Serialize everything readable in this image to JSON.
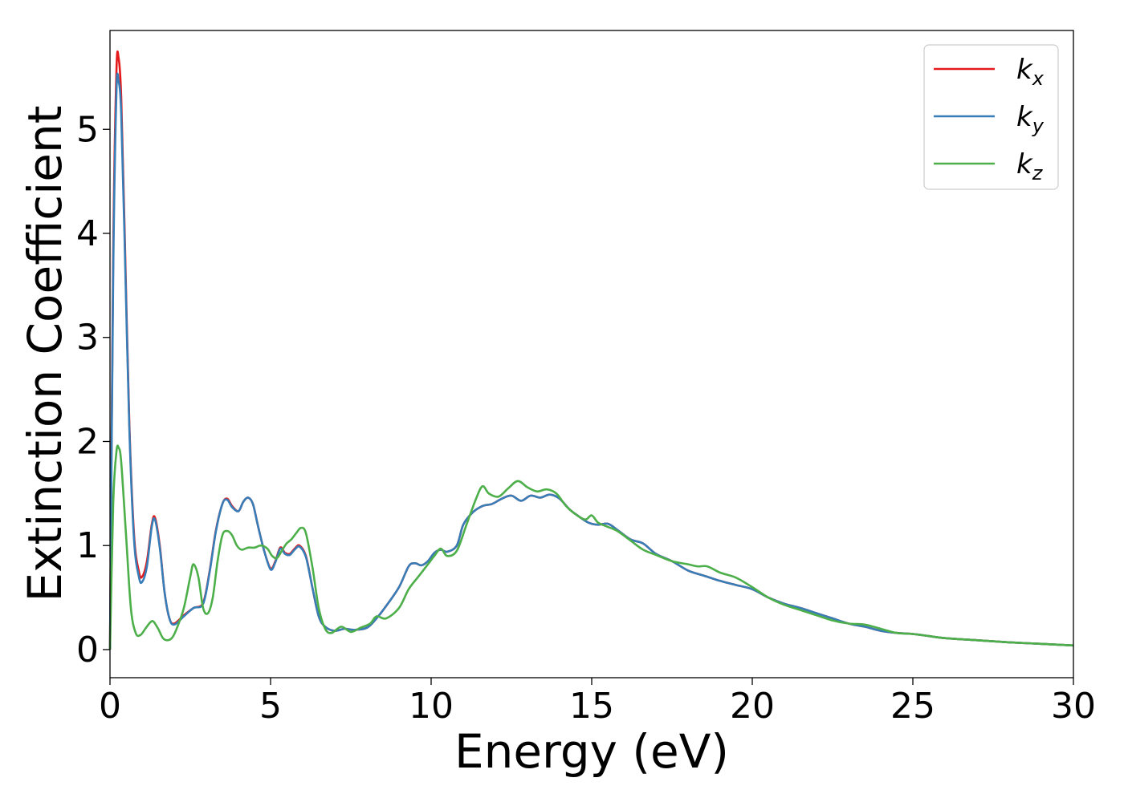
{
  "chart_data": {
    "type": "line",
    "xlabel": "Energy (eV)",
    "ylabel": "Extinction Coefficient",
    "xlim": [
      0,
      30
    ],
    "ylim": [
      -0.27,
      5.95
    ],
    "xticks": [
      "0",
      "5",
      "10",
      "15",
      "20",
      "25",
      "30"
    ],
    "yticks": [
      "0",
      "1",
      "2",
      "3",
      "4",
      "5"
    ],
    "grid": false,
    "legend_position": "top-right",
    "series": [
      {
        "name": "k_x",
        "label_main": "k",
        "label_sub": "x",
        "color": "#e41a1c",
        "x": [
          0.0,
          0.1,
          0.2,
          0.27,
          0.35,
          0.45,
          0.6,
          0.75,
          0.9,
          1.0,
          1.15,
          1.3,
          1.4,
          1.55,
          1.7,
          1.85,
          2.0,
          2.3,
          2.6,
          2.9,
          3.1,
          3.3,
          3.5,
          3.65,
          3.8,
          4.0,
          4.15,
          4.3,
          4.45,
          4.6,
          4.8,
          5.0,
          5.15,
          5.3,
          5.45,
          5.6,
          5.75,
          5.9,
          6.1,
          6.3,
          6.5,
          6.7,
          7.0,
          7.3,
          7.6,
          8.0,
          8.3,
          8.6,
          9.0,
          9.3,
          9.5,
          9.7,
          9.9,
          10.1,
          10.3,
          10.5,
          10.8,
          11.0,
          11.3,
          11.6,
          11.9,
          12.2,
          12.5,
          12.8,
          13.1,
          13.4,
          13.7,
          14.0,
          14.3,
          14.6,
          14.9,
          15.2,
          15.5,
          15.8,
          16.2,
          16.6,
          17.0,
          17.5,
          18.0,
          18.5,
          19.0,
          19.5,
          20.0,
          20.5,
          21.0,
          21.5,
          22.0,
          22.5,
          23.0,
          23.5,
          24.0,
          24.5,
          25.0,
          25.5,
          26.0,
          27.0,
          28.0,
          29.0,
          30.0
        ],
        "y": [
          0.0,
          3.8,
          5.55,
          5.68,
          5.3,
          4.1,
          2.2,
          1.1,
          0.75,
          0.7,
          0.85,
          1.2,
          1.27,
          1.0,
          0.55,
          0.3,
          0.25,
          0.33,
          0.4,
          0.45,
          0.75,
          1.15,
          1.4,
          1.45,
          1.38,
          1.33,
          1.42,
          1.46,
          1.4,
          1.2,
          0.95,
          0.78,
          0.85,
          0.98,
          0.93,
          0.92,
          0.97,
          1.0,
          0.9,
          0.6,
          0.32,
          0.22,
          0.18,
          0.2,
          0.19,
          0.21,
          0.3,
          0.42,
          0.6,
          0.8,
          0.83,
          0.81,
          0.85,
          0.93,
          0.96,
          0.94,
          1.0,
          1.2,
          1.32,
          1.38,
          1.4,
          1.45,
          1.48,
          1.43,
          1.48,
          1.46,
          1.49,
          1.45,
          1.35,
          1.28,
          1.22,
          1.2,
          1.21,
          1.15,
          1.06,
          1.02,
          0.92,
          0.85,
          0.76,
          0.71,
          0.66,
          0.62,
          0.58,
          0.5,
          0.44,
          0.4,
          0.35,
          0.3,
          0.25,
          0.22,
          0.18,
          0.16,
          0.15,
          0.13,
          0.11,
          0.09,
          0.07,
          0.055,
          0.04
        ]
      },
      {
        "name": "k_y",
        "label_main": "k",
        "label_sub": "y",
        "color": "#377eb8",
        "x": [
          0.0,
          0.1,
          0.2,
          0.27,
          0.35,
          0.45,
          0.6,
          0.75,
          0.9,
          1.0,
          1.15,
          1.3,
          1.4,
          1.55,
          1.7,
          1.85,
          2.0,
          2.3,
          2.6,
          2.9,
          3.1,
          3.3,
          3.5,
          3.65,
          3.8,
          4.0,
          4.15,
          4.3,
          4.45,
          4.6,
          4.8,
          5.0,
          5.15,
          5.3,
          5.45,
          5.6,
          5.75,
          5.9,
          6.1,
          6.3,
          6.5,
          6.7,
          7.0,
          7.3,
          7.6,
          8.0,
          8.3,
          8.6,
          9.0,
          9.3,
          9.5,
          9.7,
          9.9,
          10.1,
          10.3,
          10.5,
          10.8,
          11.0,
          11.3,
          11.6,
          11.9,
          12.2,
          12.5,
          12.8,
          13.1,
          13.4,
          13.7,
          14.0,
          14.3,
          14.6,
          14.9,
          15.2,
          15.5,
          15.8,
          16.2,
          16.6,
          17.0,
          17.5,
          18.0,
          18.5,
          19.0,
          19.5,
          20.0,
          20.5,
          21.0,
          21.5,
          22.0,
          22.5,
          23.0,
          23.5,
          24.0,
          24.5,
          25.0,
          25.5,
          26.0,
          27.0,
          28.0,
          29.0,
          30.0
        ],
        "y": [
          0.0,
          3.6,
          5.35,
          5.46,
          5.15,
          4.0,
          2.15,
          1.05,
          0.7,
          0.65,
          0.8,
          1.18,
          1.25,
          0.98,
          0.55,
          0.3,
          0.24,
          0.32,
          0.4,
          0.44,
          0.74,
          1.14,
          1.4,
          1.44,
          1.37,
          1.33,
          1.42,
          1.46,
          1.4,
          1.2,
          0.95,
          0.77,
          0.84,
          0.97,
          0.92,
          0.91,
          0.96,
          0.99,
          0.89,
          0.6,
          0.32,
          0.22,
          0.18,
          0.2,
          0.19,
          0.21,
          0.3,
          0.42,
          0.6,
          0.8,
          0.83,
          0.81,
          0.85,
          0.93,
          0.96,
          0.94,
          1.0,
          1.2,
          1.32,
          1.38,
          1.4,
          1.45,
          1.48,
          1.43,
          1.48,
          1.46,
          1.49,
          1.45,
          1.35,
          1.28,
          1.22,
          1.2,
          1.21,
          1.15,
          1.06,
          1.02,
          0.92,
          0.85,
          0.76,
          0.71,
          0.66,
          0.62,
          0.58,
          0.5,
          0.44,
          0.4,
          0.35,
          0.3,
          0.25,
          0.22,
          0.18,
          0.16,
          0.15,
          0.13,
          0.11,
          0.09,
          0.07,
          0.055,
          0.04
        ]
      },
      {
        "name": "k_z",
        "label_main": "k",
        "label_sub": "z",
        "color": "#4daf4a",
        "x": [
          0.0,
          0.1,
          0.2,
          0.27,
          0.35,
          0.5,
          0.65,
          0.8,
          0.95,
          1.1,
          1.25,
          1.35,
          1.5,
          1.65,
          1.8,
          1.95,
          2.1,
          2.3,
          2.5,
          2.6,
          2.75,
          2.9,
          3.05,
          3.2,
          3.35,
          3.5,
          3.65,
          3.8,
          3.95,
          4.1,
          4.3,
          4.5,
          4.7,
          4.9,
          5.05,
          5.2,
          5.35,
          5.5,
          5.65,
          5.8,
          5.95,
          6.1,
          6.3,
          6.5,
          6.7,
          6.9,
          7.2,
          7.5,
          7.8,
          8.1,
          8.3,
          8.6,
          9.0,
          9.3,
          9.6,
          9.9,
          10.1,
          10.3,
          10.5,
          10.8,
          11.1,
          11.4,
          11.6,
          11.8,
          12.1,
          12.4,
          12.7,
          13.0,
          13.3,
          13.6,
          13.9,
          14.2,
          14.5,
          14.8,
          15.0,
          15.2,
          15.5,
          15.8,
          16.2,
          16.6,
          17.0,
          17.5,
          18.0,
          18.3,
          18.6,
          19.0,
          19.5,
          20.0,
          20.5,
          21.0,
          21.5,
          22.0,
          22.5,
          23.0,
          23.5,
          24.0,
          24.5,
          25.0,
          25.5,
          26.0,
          27.0,
          28.0,
          29.0,
          30.0
        ],
        "y": [
          0.0,
          1.4,
          1.9,
          1.94,
          1.8,
          1.1,
          0.4,
          0.16,
          0.14,
          0.2,
          0.26,
          0.27,
          0.2,
          0.11,
          0.09,
          0.12,
          0.22,
          0.4,
          0.7,
          0.82,
          0.7,
          0.4,
          0.35,
          0.5,
          0.85,
          1.1,
          1.14,
          1.1,
          1.0,
          0.96,
          0.98,
          0.98,
          1.0,
          0.97,
          0.9,
          0.88,
          0.95,
          1.02,
          1.06,
          1.12,
          1.17,
          1.12,
          0.8,
          0.4,
          0.2,
          0.16,
          0.22,
          0.17,
          0.21,
          0.25,
          0.32,
          0.3,
          0.4,
          0.58,
          0.7,
          0.82,
          0.9,
          0.97,
          0.9,
          0.95,
          1.2,
          1.45,
          1.57,
          1.5,
          1.47,
          1.55,
          1.62,
          1.56,
          1.52,
          1.54,
          1.5,
          1.38,
          1.3,
          1.25,
          1.29,
          1.22,
          1.18,
          1.14,
          1.05,
          0.96,
          0.91,
          0.85,
          0.82,
          0.8,
          0.8,
          0.74,
          0.69,
          0.6,
          0.5,
          0.43,
          0.38,
          0.33,
          0.28,
          0.25,
          0.24,
          0.2,
          0.16,
          0.15,
          0.13,
          0.11,
          0.09,
          0.07,
          0.055,
          0.04
        ]
      }
    ]
  }
}
